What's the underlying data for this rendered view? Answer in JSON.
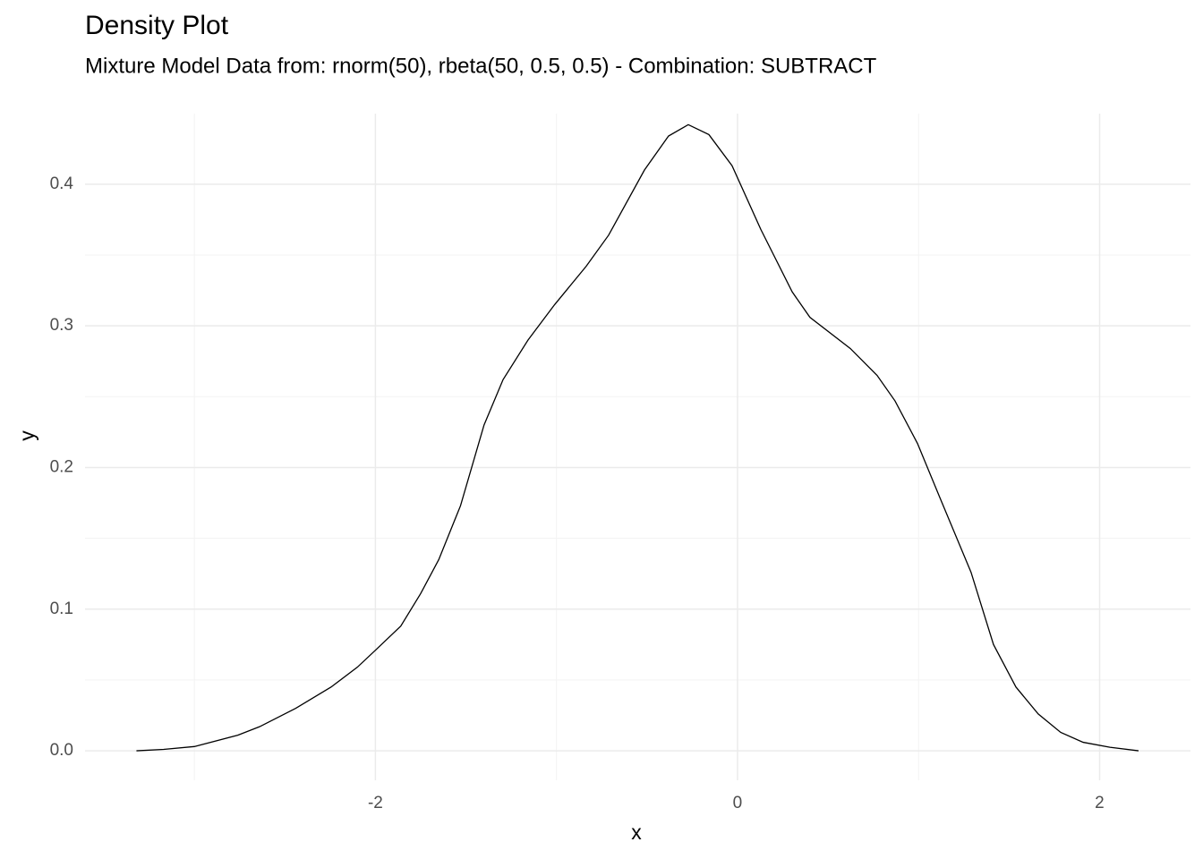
{
  "chart_data": {
    "type": "line",
    "title": "Density Plot",
    "subtitle": "Mixture Model Data from: rnorm(50), rbeta(50, 0.5, 0.5) - Combination: SUBTRACT",
    "x_label": "x",
    "y_label": "y",
    "xlim": [
      -3.604,
      2.502
    ],
    "ylim": [
      -0.0208,
      0.4498
    ],
    "xticks": [
      -2,
      0,
      2
    ],
    "yticks": [
      {
        "value": 0,
        "label": "0.0"
      },
      0.1,
      0.2,
      0.3,
      0.4
    ],
    "grid": true,
    "minor_grid": true,
    "x": [
      -3.32,
      -3.17,
      -3.0,
      -2.76,
      -2.64,
      -2.44,
      -2.245,
      -2.1,
      -2.0,
      -1.86,
      -1.75,
      -1.65,
      -1.53,
      -1.4,
      -1.295,
      -1.157,
      -1.01,
      -0.836,
      -0.712,
      -0.514,
      -0.381,
      -0.272,
      -0.158,
      -0.03,
      0.129,
      0.302,
      0.4,
      0.623,
      0.771,
      0.87,
      0.994,
      1.117,
      1.29,
      1.414,
      1.538,
      1.661,
      1.785,
      1.909,
      2.057,
      2.215
    ],
    "series": [
      {
        "color": "#000000",
        "values": [
          0.0,
          0.001,
          0.003,
          0.011,
          0.017,
          0.03,
          0.045,
          0.059,
          0.071,
          0.088,
          0.111,
          0.135,
          0.173,
          0.23,
          0.262,
          0.29,
          0.315,
          0.342,
          0.364,
          0.41,
          0.434,
          0.442,
          0.435,
          0.413,
          0.368,
          0.324,
          0.306,
          0.284,
          0.265,
          0.247,
          0.217,
          0.179,
          0.126,
          0.075,
          0.045,
          0.026,
          0.013,
          0.006,
          0.0025,
          0.0
        ]
      }
    ]
  }
}
